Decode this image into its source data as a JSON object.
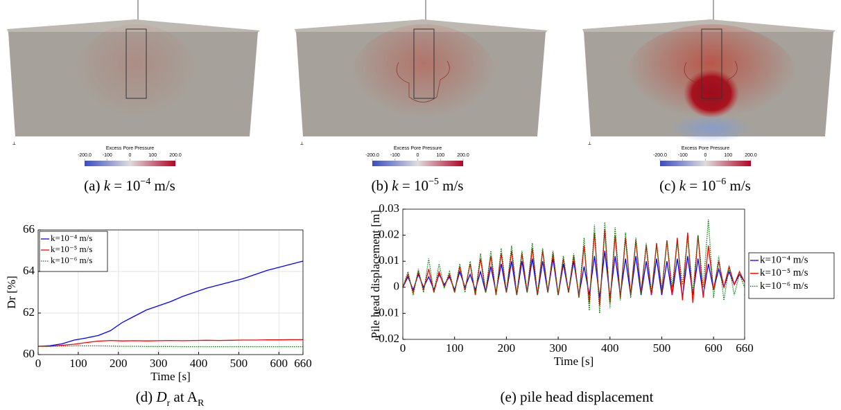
{
  "renders": [
    {
      "caption": [
        {
          "text": "(a) "
        },
        {
          "text": "k",
          "style": "i"
        },
        {
          "text": " = 10"
        },
        {
          "text": "−4",
          "style": "sup"
        },
        {
          "text": " m/s"
        }
      ],
      "colorbar": {
        "title": "Excess Pore Pressure",
        "lim": [
          -200,
          200
        ],
        "ticks": [
          {
            "value": -200,
            "label": "-200.0"
          },
          -100,
          0,
          100,
          {
            "value": 200,
            "label": "200.0"
          }
        ]
      }
    },
    {
      "caption": [
        {
          "text": "(b) "
        },
        {
          "text": "k",
          "style": "i"
        },
        {
          "text": " = 10"
        },
        {
          "text": "−5",
          "style": "sup"
        },
        {
          "text": " m/s"
        }
      ],
      "colorbar": {
        "title": "Excess Pore Pressure",
        "lim": [
          -200,
          200
        ],
        "ticks": [
          {
            "value": -200,
            "label": "-200.0"
          },
          -100,
          0,
          100,
          {
            "value": 200,
            "label": "200.0"
          }
        ]
      }
    },
    {
      "caption": [
        {
          "text": "(c) "
        },
        {
          "text": "k",
          "style": "i"
        },
        {
          "text": " = 10"
        },
        {
          "text": "−6",
          "style": "sup"
        },
        {
          "text": " m/s"
        }
      ],
      "colorbar": {
        "title": "Excess Pore Pressure",
        "lim": [
          -200,
          200
        ],
        "ticks": [
          {
            "value": -200,
            "label": "-200.0"
          },
          -100,
          0,
          100,
          {
            "value": 200,
            "label": "200.0"
          }
        ]
      }
    }
  ],
  "chart_data": [
    {
      "type": "line",
      "caption": [
        {
          "text": "(d) "
        },
        {
          "text": "D",
          "style": "i"
        },
        {
          "text": "r",
          "style": "sub"
        },
        {
          "text": " at A"
        },
        {
          "text": "R",
          "style": "sub"
        }
      ],
      "xlabel": "Time [s]",
      "ylabel": "Dr [%]",
      "grid": true,
      "legend": "upper left",
      "xlim": [
        0,
        660
      ],
      "xticks": [
        0,
        100,
        200,
        300,
        400,
        500,
        600,
        660
      ],
      "ylim": [
        60,
        66
      ],
      "yticks": [
        60,
        62,
        64,
        66
      ],
      "x": [
        0,
        30,
        60,
        90,
        120,
        150,
        180,
        210,
        240,
        270,
        300,
        330,
        360,
        390,
        420,
        450,
        480,
        510,
        540,
        570,
        600,
        630,
        660
      ],
      "series": [
        {
          "name": "k=10⁻⁴ m/s",
          "color": "#0000ff",
          "values": [
            60.4,
            60.43,
            60.52,
            60.7,
            60.8,
            60.92,
            61.15,
            61.55,
            61.85,
            62.15,
            62.35,
            62.55,
            62.8,
            63.0,
            63.2,
            63.35,
            63.5,
            63.65,
            63.85,
            64.05,
            64.2,
            64.35,
            64.5
          ]
        },
        {
          "name": "k=10⁻⁵ m/s",
          "color": "#ff0000",
          "values": [
            60.4,
            60.4,
            60.45,
            60.5,
            60.58,
            60.65,
            60.68,
            60.66,
            60.67,
            60.66,
            60.67,
            60.68,
            60.67,
            60.68,
            60.69,
            60.68,
            60.69,
            60.7,
            60.7,
            60.71,
            60.71,
            60.72,
            60.72
          ]
        },
        {
          "name": "k=10⁻⁶ m/s",
          "color": "#008000",
          "linestyle": "dotted",
          "values": [
            60.4,
            60.4,
            60.41,
            60.42,
            60.42,
            60.42,
            60.41,
            60.4,
            60.4,
            60.39,
            60.39,
            60.39,
            60.38,
            60.38,
            60.38,
            60.38,
            60.38,
            60.38,
            60.38,
            60.38,
            60.38,
            60.38,
            60.38
          ]
        }
      ]
    },
    {
      "type": "line",
      "caption": [
        {
          "text": "(e) pile head displacement"
        }
      ],
      "xlabel": "Time [s]",
      "ylabel": "Pile head displacement [m]",
      "grid": false,
      "legend": "outside right",
      "xlim": [
        0,
        660
      ],
      "xticks": [
        0,
        100,
        200,
        300,
        400,
        500,
        600,
        660
      ],
      "ylim": [
        -0.02,
        0.03
      ],
      "yticks": [
        -0.02,
        -0.01,
        0,
        0.01,
        0.02,
        0.03
      ],
      "x": [
        0,
        10,
        20,
        30,
        40,
        50,
        60,
        70,
        80,
        90,
        100,
        110,
        120,
        130,
        140,
        150,
        160,
        170,
        180,
        190,
        200,
        210,
        220,
        230,
        240,
        250,
        260,
        270,
        280,
        290,
        300,
        310,
        320,
        330,
        340,
        350,
        360,
        370,
        380,
        390,
        400,
        410,
        420,
        430,
        440,
        450,
        460,
        470,
        480,
        490,
        500,
        510,
        520,
        530,
        540,
        550,
        560,
        570,
        580,
        590,
        600,
        610,
        620,
        630,
        640,
        650,
        660
      ],
      "series": [
        {
          "name": "k=10⁻⁴ m/s",
          "color": "#0000ff",
          "values": [
            0.0,
            0.004,
            -0.001,
            0.005,
            0.0,
            0.004,
            -0.001,
            0.005,
            0.001,
            0.004,
            -0.001,
            0.006,
            0.0,
            0.005,
            -0.001,
            0.006,
            -0.002,
            0.008,
            -0.002,
            0.009,
            -0.002,
            0.01,
            -0.003,
            0.01,
            -0.002,
            0.011,
            -0.003,
            0.01,
            -0.002,
            0.011,
            -0.003,
            0.009,
            -0.002,
            0.01,
            -0.003,
            0.008,
            -0.003,
            0.012,
            -0.004,
            0.014,
            -0.004,
            0.012,
            -0.003,
            0.011,
            -0.003,
            0.012,
            -0.003,
            0.01,
            -0.003,
            0.011,
            -0.003,
            0.01,
            -0.003,
            0.011,
            -0.004,
            0.012,
            -0.003,
            0.011,
            -0.003,
            0.009,
            -0.001,
            0.007,
            0.0,
            0.006,
            0.001,
            0.005,
            0.002
          ]
        },
        {
          "name": "k=10⁻⁵ m/s",
          "color": "#ff0000",
          "values": [
            0.0,
            0.005,
            -0.002,
            0.006,
            -0.001,
            0.007,
            -0.002,
            0.006,
            0.0,
            0.005,
            -0.002,
            0.008,
            -0.001,
            0.009,
            -0.003,
            0.011,
            -0.002,
            0.012,
            -0.003,
            0.013,
            -0.002,
            0.014,
            -0.003,
            0.013,
            -0.002,
            0.015,
            -0.003,
            0.014,
            -0.002,
            0.013,
            -0.003,
            0.011,
            -0.002,
            0.012,
            -0.004,
            0.016,
            -0.006,
            0.021,
            -0.007,
            0.022,
            -0.006,
            0.02,
            -0.004,
            0.019,
            -0.003,
            0.018,
            -0.002,
            0.016,
            -0.003,
            0.017,
            -0.002,
            0.018,
            -0.003,
            0.019,
            -0.005,
            0.021,
            -0.006,
            0.02,
            -0.004,
            0.016,
            -0.001,
            0.01,
            0.0,
            0.008,
            0.001,
            0.006,
            0.002
          ]
        },
        {
          "name": "k=10⁻⁶ m/s",
          "color": "#008000",
          "linestyle": "dotted",
          "values": [
            0.0,
            0.006,
            -0.003,
            0.007,
            -0.002,
            0.011,
            -0.002,
            0.009,
            0.0,
            0.006,
            -0.002,
            0.009,
            -0.002,
            0.01,
            -0.003,
            0.013,
            -0.002,
            0.014,
            -0.003,
            0.015,
            -0.002,
            0.016,
            -0.003,
            0.014,
            -0.002,
            0.017,
            -0.003,
            0.015,
            -0.002,
            0.014,
            -0.003,
            0.012,
            -0.002,
            0.013,
            -0.004,
            0.019,
            -0.009,
            0.024,
            -0.01,
            0.025,
            -0.008,
            0.023,
            -0.005,
            0.021,
            -0.004,
            0.019,
            -0.003,
            0.017,
            -0.002,
            0.016,
            -0.001,
            0.018,
            0.0,
            0.017,
            0.001,
            0.019,
            -0.002,
            0.02,
            0.0,
            0.026,
            -0.004,
            0.012,
            -0.005,
            0.008,
            -0.003,
            0.005,
            0.0
          ]
        }
      ]
    }
  ]
}
